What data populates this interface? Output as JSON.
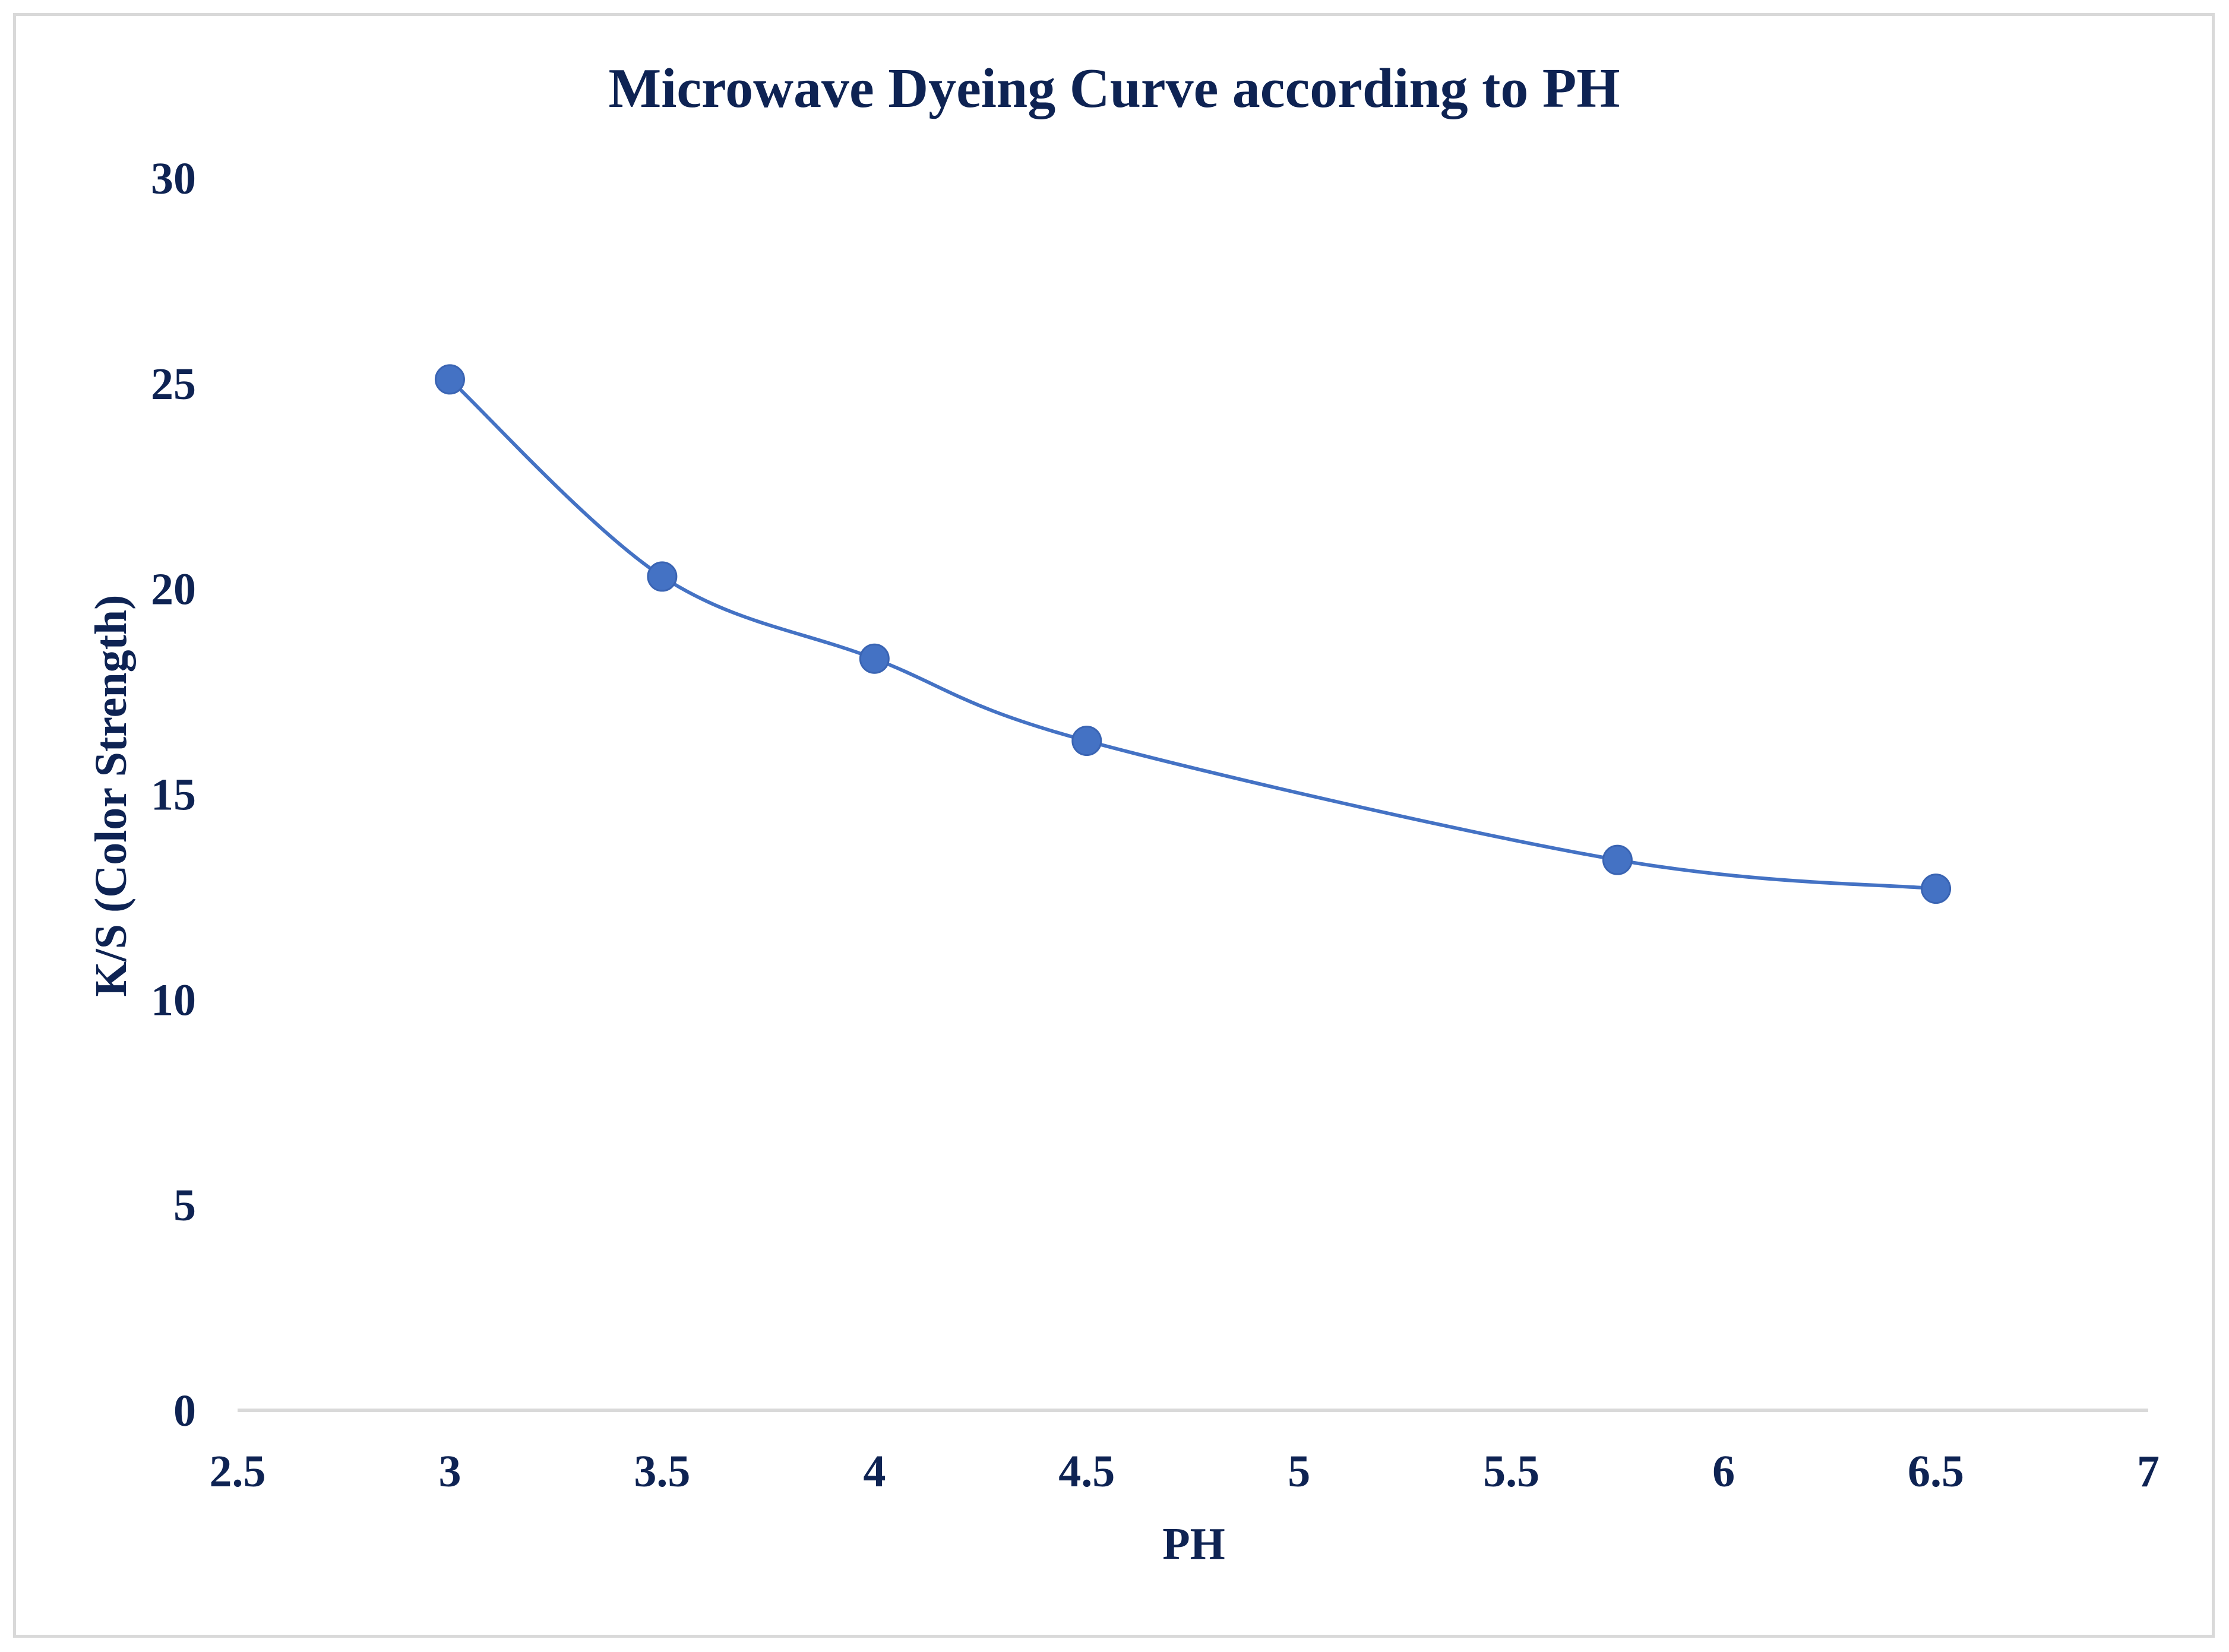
{
  "chart_data": {
    "type": "line",
    "title": "Microwave Dyeing Curve according to PH",
    "xlabel": "PH",
    "ylabel": "K/S (Color Strength)",
    "xlim": [
      2.5,
      7
    ],
    "ylim": [
      0,
      30
    ],
    "x_ticks": [
      "2.5",
      "3",
      "3.5",
      "4",
      "4.5",
      "5",
      "5.5",
      "6",
      "6.5",
      "7"
    ],
    "y_ticks": [
      "0",
      "5",
      "10",
      "15",
      "20",
      "25",
      "30"
    ],
    "grid": false,
    "smooth": true,
    "series": [
      {
        "name": "K/S",
        "color": "#4472c4",
        "x": [
          3,
          3.5,
          4,
          4.5,
          5.75,
          6.5
        ],
        "values": [
          25.1,
          20.3,
          18.3,
          16.3,
          13.4,
          12.7
        ]
      }
    ]
  }
}
